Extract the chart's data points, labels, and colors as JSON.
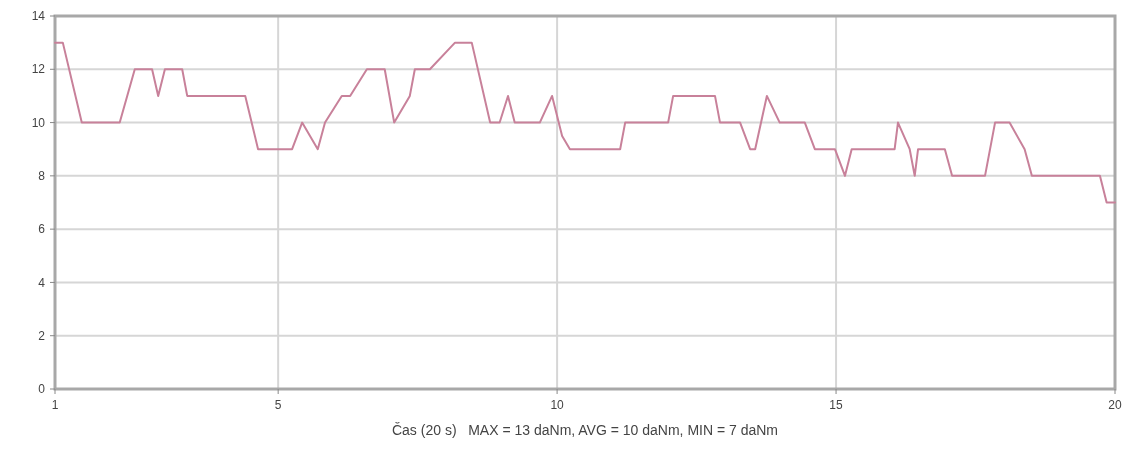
{
  "chart_data": {
    "type": "line",
    "xlabel": "Čas (20 s)   MAX = 13 daNm, AVG = 10 daNm, MIN = 7 daNm",
    "x": [
      1.0,
      1.14,
      1.48,
      2.16,
      2.43,
      2.74,
      2.85,
      2.97,
      3.28,
      3.37,
      4.41,
      4.64,
      5.25,
      5.43,
      5.71,
      5.84,
      6.14,
      6.29,
      6.59,
      6.91,
      7.08,
      7.36,
      7.45,
      7.72,
      8.17,
      8.47,
      8.8,
      8.97,
      9.12,
      9.24,
      9.69,
      9.91,
      10.09,
      10.23,
      11.13,
      11.22,
      11.99,
      12.08,
      12.83,
      12.92,
      13.28,
      13.46,
      13.55,
      13.76,
      13.99,
      14.44,
      14.62,
      14.98,
      15.16,
      15.28,
      16.05,
      16.11,
      16.32,
      16.41,
      16.47,
      16.95,
      17.08,
      17.67,
      17.85,
      18.11,
      18.38,
      18.51,
      19.73,
      19.85,
      20.0
    ],
    "series": [
      {
        "color": "#c8819a",
        "values": [
          13,
          13,
          10,
          10,
          12,
          12,
          11,
          12,
          12,
          11,
          11,
          9,
          9,
          10,
          9,
          10,
          11,
          11,
          12,
          12,
          10,
          11,
          12,
          12,
          13,
          13,
          10,
          10,
          11,
          10,
          10,
          11,
          9.5,
          9,
          9,
          10,
          10,
          11,
          11,
          10,
          10,
          9,
          9,
          11,
          10,
          10,
          9,
          9,
          8,
          9,
          9,
          10,
          9,
          8,
          9,
          9,
          8,
          8,
          10,
          10,
          9,
          8,
          8,
          7,
          7
        ]
      }
    ],
    "xlim": [
      1,
      20
    ],
    "xticks": [
      1,
      5,
      10,
      15,
      20
    ],
    "ylim": [
      0,
      14
    ],
    "yticks": [
      0,
      2,
      4,
      6,
      8,
      10,
      12,
      14
    ],
    "grid": true,
    "marker": "none",
    "line_style": "solid"
  }
}
